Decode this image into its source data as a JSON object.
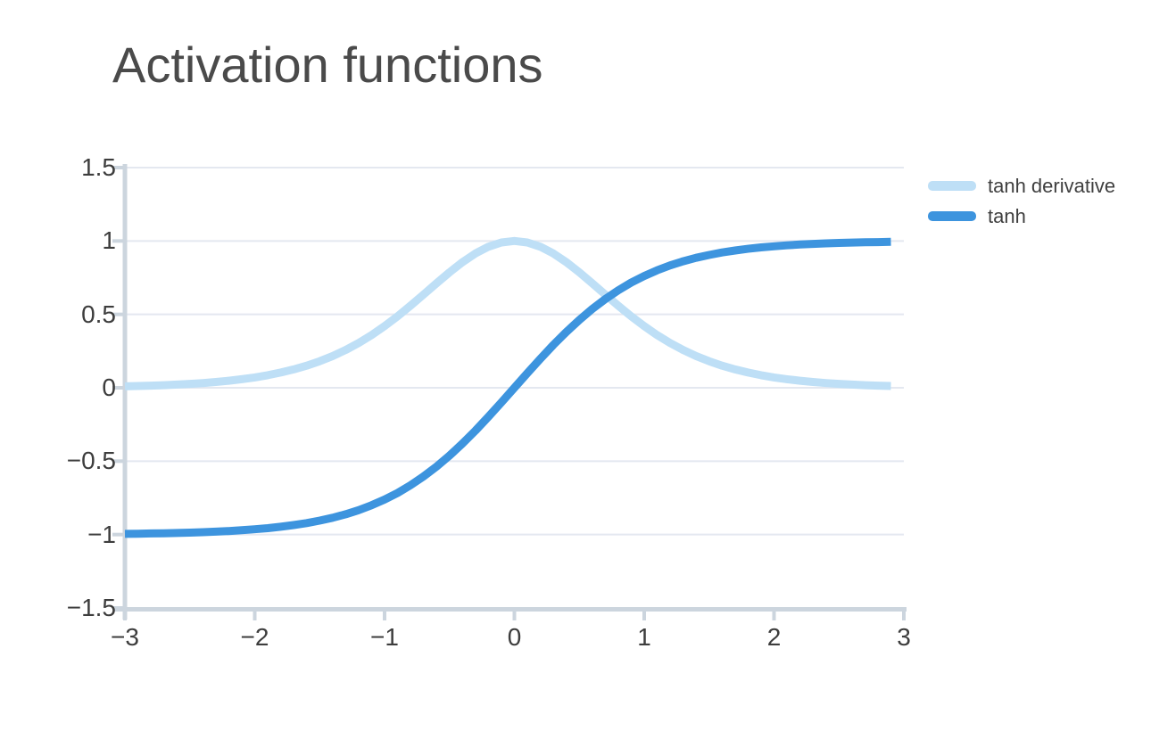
{
  "chart_data": {
    "type": "line",
    "title": "Activation functions",
    "xlabel": "",
    "ylabel": "",
    "xlim": [
      -3,
      3
    ],
    "ylim": [
      -1.5,
      1.5
    ],
    "grid": "horizontal",
    "legend_position": "top-right",
    "axis_color": "#ccd5de",
    "grid_color": "#e4e8f0",
    "tick_label_color": "#3d3d3d",
    "title_color": "#4a4a4a",
    "background_color": "#ffffff",
    "line_width": 9,
    "x_ticks": [
      -3,
      -2,
      -1,
      0,
      1,
      2,
      3
    ],
    "y_ticks": [
      -1.5,
      -1,
      -0.5,
      0,
      0.5,
      1,
      1.5
    ],
    "x_tick_labels": [
      "−3",
      "−2",
      "−1",
      "0",
      "1",
      "2",
      "3"
    ],
    "y_tick_labels": [
      "−1.5",
      "−1",
      "−0.5",
      "0",
      "0.5",
      "1",
      "1.5"
    ],
    "x": [
      -3.0,
      -2.9,
      -2.8,
      -2.7,
      -2.6,
      -2.5,
      -2.4,
      -2.3,
      -2.2,
      -2.1,
      -2.0,
      -1.9,
      -1.8,
      -1.7,
      -1.6,
      -1.5,
      -1.4,
      -1.3,
      -1.2,
      -1.1,
      -1.0,
      -0.9,
      -0.8,
      -0.7,
      -0.6,
      -0.5,
      -0.4,
      -0.3,
      -0.2,
      -0.1,
      0.0,
      0.1,
      0.2,
      0.3,
      0.4,
      0.5,
      0.6,
      0.7,
      0.8,
      0.9,
      1.0,
      1.1,
      1.2,
      1.3,
      1.4,
      1.5,
      1.6,
      1.7,
      1.8,
      1.9,
      2.0,
      2.1,
      2.2,
      2.3,
      2.4,
      2.5,
      2.6,
      2.7,
      2.8,
      2.9
    ],
    "series": [
      {
        "name": "tanh derivative",
        "color": "#bedff6",
        "values": [
          0.0099,
          0.012,
          0.0147,
          0.0179,
          0.0219,
          0.0266,
          0.0323,
          0.0394,
          0.048,
          0.0581,
          0.0707,
          0.0857,
          0.1036,
          0.125,
          0.1505,
          0.1808,
          0.2161,
          0.2575,
          0.3049,
          0.3592,
          0.42,
          0.4869,
          0.5591,
          0.6347,
          0.7116,
          0.7865,
          0.8557,
          0.9151,
          0.961,
          0.9901,
          1.0,
          0.9901,
          0.961,
          0.9151,
          0.8557,
          0.7865,
          0.7116,
          0.6347,
          0.5591,
          0.4869,
          0.42,
          0.3592,
          0.3049,
          0.2575,
          0.2161,
          0.1808,
          0.1505,
          0.125,
          0.1036,
          0.0857,
          0.0707,
          0.0581,
          0.048,
          0.0394,
          0.0323,
          0.0266,
          0.0219,
          0.0179,
          0.0147,
          0.012
        ]
      },
      {
        "name": "tanh",
        "color": "#3d94de",
        "values": [
          -0.9951,
          -0.994,
          -0.9926,
          -0.991,
          -0.989,
          -0.9866,
          -0.9837,
          -0.9801,
          -0.9757,
          -0.9705,
          -0.964,
          -0.9562,
          -0.9468,
          -0.9354,
          -0.9217,
          -0.9051,
          -0.8854,
          -0.8617,
          -0.8337,
          -0.8005,
          -0.7616,
          -0.7163,
          -0.664,
          -0.6044,
          -0.537,
          -0.4621,
          -0.3799,
          -0.2913,
          -0.1974,
          -0.0997,
          0.0,
          0.0997,
          0.1974,
          0.2913,
          0.3799,
          0.4621,
          0.537,
          0.6044,
          0.664,
          0.7163,
          0.7616,
          0.8005,
          0.8337,
          0.8617,
          0.8854,
          0.9051,
          0.9217,
          0.9354,
          0.9468,
          0.9562,
          0.964,
          0.9705,
          0.9757,
          0.9801,
          0.9837,
          0.9866,
          0.989,
          0.991,
          0.9926,
          0.994
        ]
      }
    ]
  },
  "legend": {
    "items": [
      {
        "label": "tanh derivative"
      },
      {
        "label": "tanh"
      }
    ]
  }
}
